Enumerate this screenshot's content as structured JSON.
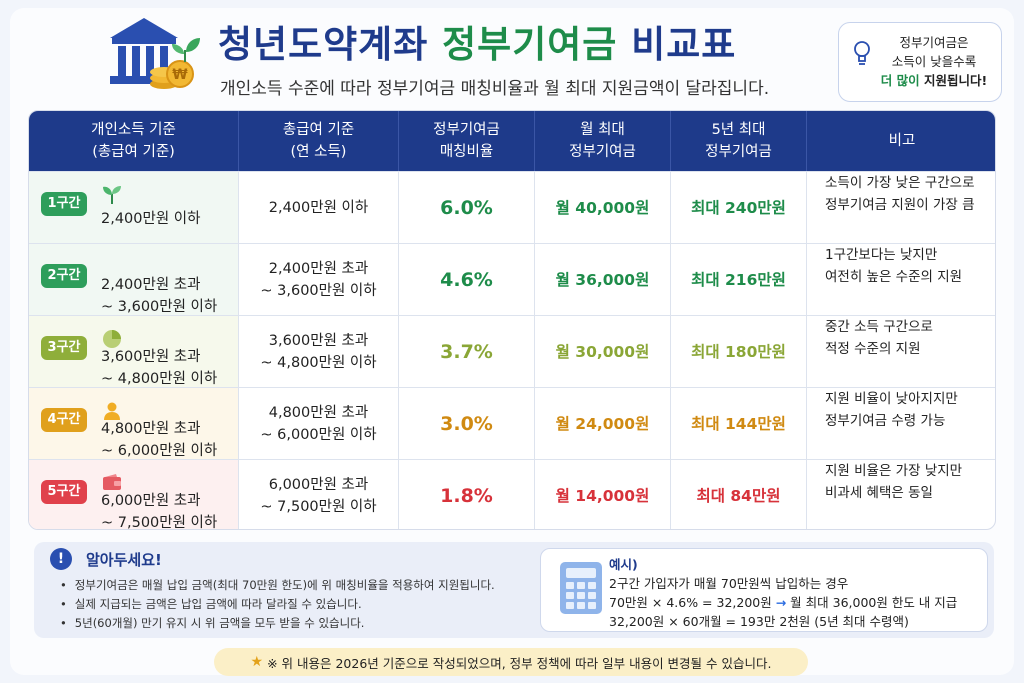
{
  "header": {
    "title_main": "청년도약계좌 ",
    "title_accent": "정부기여금",
    "title_tail": " 비교표",
    "subtitle": "개인소득 수준에 따라 정부기여금 매칭비율과 월 최대 지원금액이 달라집니다.",
    "tip": {
      "line1": "정부기여금은",
      "line2": "소득이 낮을수록",
      "line3_accent": "더 많이",
      "line3_rest": " 지원됩니다!"
    }
  },
  "table": {
    "headers": [
      {
        "l1": "개인소득 기준",
        "l2": "(총급여 기준)"
      },
      {
        "l1": "총급여 기준",
        "l2": "(연 소득)"
      },
      {
        "l1": "정부기여금",
        "l2": "매칭비율"
      },
      {
        "l1": "월 최대",
        "l2": "정부기여금"
      },
      {
        "l1": "5년 최대",
        "l2": "정부기여금"
      },
      {
        "l1": "비고",
        "l2": ""
      }
    ],
    "rows": [
      {
        "badge": "1구간",
        "income1": "2,400만원 이하",
        "income2": "",
        "annual1": "2,400만원 이하",
        "annual2": "",
        "rate": "6.0%",
        "monthly": "월 40,000원",
        "max": "최대 240만원",
        "note1": "소득이 가장 낮은 구간으로",
        "note2": "정부기여금 지원이 가장 큼",
        "color": "#2e9e5b",
        "bg": "#f1f8f3",
        "icon": "sprout-icon"
      },
      {
        "badge": "2구간",
        "income1": "2,400만원 초과",
        "income2": "~ 3,600만원 이하",
        "annual1": "2,400만원 초과",
        "annual2": "~ 3,600만원 이하",
        "rate": "4.6%",
        "monthly": "월 36,000원",
        "max": "최대 216만원",
        "note1": " 1구간보다는 낮지만",
        "note2": "여전히 높은 수준의 지원",
        "color": "#2e9e5b",
        "bg": "#f1f8f3",
        "icon": ""
      },
      {
        "badge": "3구간",
        "income1": "3,600만원 초과",
        "income2": "~ 4,800만원 이하",
        "annual1": "3,600만원 초과",
        "annual2": "~ 4,800만원 이하",
        "rate": "3.7%",
        "monthly": "월 30,000원",
        "max": "최대 180만원",
        "note1": "중간 소득 구간으로",
        "note2": "적정 수준의 지원",
        "color": "#8fae3a",
        "bg": "#f6f9ec",
        "icon": "pie-chart-icon"
      },
      {
        "badge": "4구간",
        "income1": "4,800만원 초과",
        "income2": "~ 6,000만원 이하",
        "annual1": "4,800만원 초과",
        "annual2": "~ 6,000만원 이하",
        "rate": "3.0%",
        "monthly": "월 24,000원",
        "max": "최대 144만원",
        "note1": "지원 비율이 낮아지지만",
        "note2": "정부기여금 수령 가능",
        "color": "#e0a01c",
        "bg": "#fdf7e9",
        "icon": "person-icon"
      },
      {
        "badge": "5구간",
        "income1": "6,000만원 초과",
        "income2": "~ 7,500만원 이하",
        "annual1": "6,000만원 초과",
        "annual2": "~ 7,500만원 이하",
        "rate": "1.8%",
        "monthly": "월 14,000원",
        "max": "최대 84만원",
        "note1": "지원 비율은 가장 낮지만",
        "note2": "비과세 혜택은 동일",
        "color": "#e0414b",
        "bg": "#fdf0f0",
        "icon": "wallet-icon"
      }
    ],
    "text_colors": [
      "#1e8c4a",
      "#1e8c4a",
      "#8aa636",
      "#d08a12",
      "#d7323a"
    ]
  },
  "notice": {
    "title": "알아두세요!",
    "items": [
      "정부기여금은 매월 납입 금액(최대 70만원 한도)에 위 매칭비율을 적용하여 지원됩니다.",
      "실제 지급되는 금액은 납입 금액에 따라 달라질 수 있습니다.",
      "5년(60개월) 만기 유지 시 위 금액을 모두 받을 수 있습니다."
    ]
  },
  "example": {
    "title": "예시)",
    "line1": "2구간 가입자가 매월 70만원씩 납입하는 경우",
    "line2a": "70만원 × 4.6% = 32,200원 ",
    "arrow": "→",
    "line2b": " 월 최대 36,000원 한도 내 지급",
    "line3": "32,200원 × 60개월 = 193만 2천원 (5년 최대 수령액)"
  },
  "footnote": "※ 위 내용은 2026년 기준으로 작성되었으며, 정부 정책에 따라 일부 내용이 변경될 수 있습니다."
}
